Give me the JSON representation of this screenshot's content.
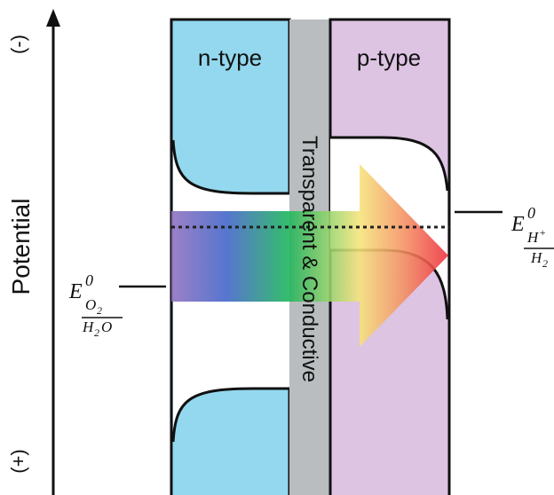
{
  "axis": {
    "label": "Potential",
    "negative_symbol": "(-)",
    "positive_symbol": "(+)"
  },
  "panels": {
    "n_type": {
      "label": "n-type",
      "color": "#93D8EE"
    },
    "p_type": {
      "label": "p-type",
      "color": "#DDC4E3"
    },
    "middle": {
      "label": "Transparent & Conductive",
      "color": "#B9BDBF"
    }
  },
  "potentials": {
    "oxygen": {
      "symbol": "E",
      "superscript": "0",
      "subscript": "O",
      "subscript_index": "2",
      "denominator": "H",
      "denominator_index": "2",
      "denominator_tail": "O"
    },
    "hydrogen": {
      "symbol": "E",
      "superscript": "0",
      "subscript": "H",
      "subscript_charge": "+",
      "denominator": "H",
      "denominator_index": "2"
    }
  },
  "arrow_colors": [
    "#8E6FBF",
    "#3F63C8",
    "#19B35A",
    "#8ED36A",
    "#F6E37A",
    "#F49062",
    "#EE2D3C"
  ]
}
